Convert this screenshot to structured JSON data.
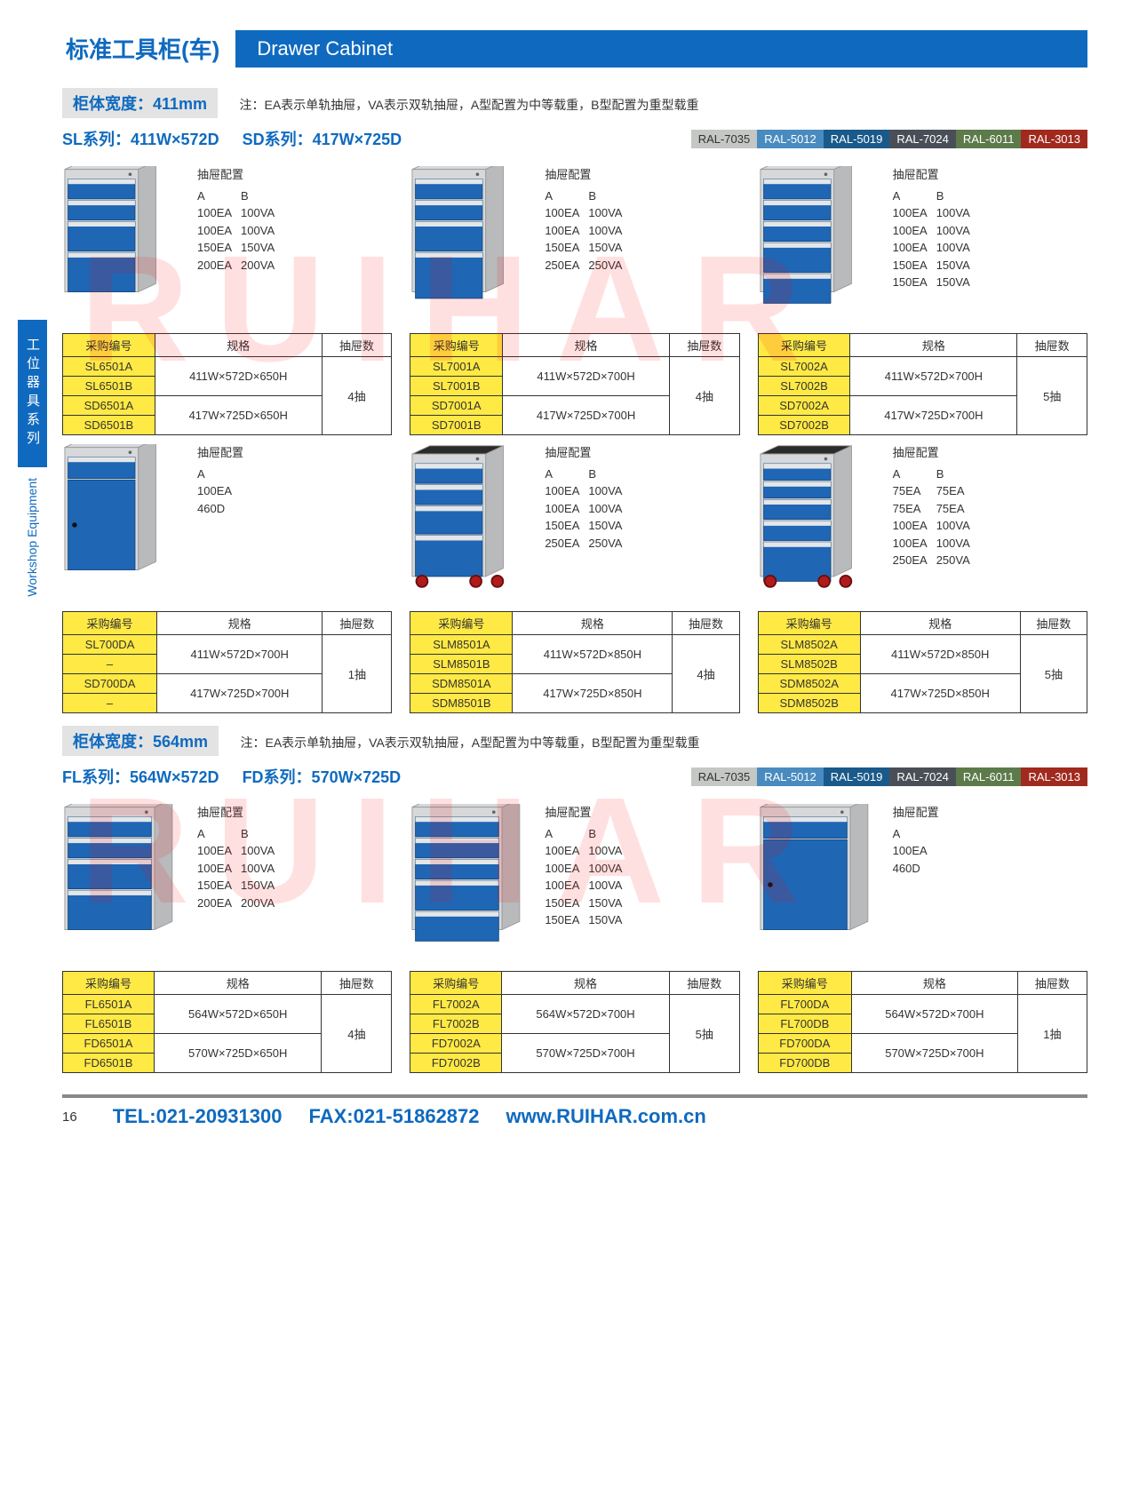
{
  "header": {
    "title_cn": "标准工具柜(车)",
    "title_en": "Drawer Cabinet"
  },
  "sidebar": {
    "cn": "工位器具系列",
    "en": "Workshop Equipment"
  },
  "watermark": "RUIHAR",
  "page_number": "16",
  "footer": {
    "tel": "TEL:021-20931300",
    "fax": "FAX:021-51862872",
    "web": "www.RUIHAR.com.cn"
  },
  "ral_colors": [
    {
      "label": "RAL-7035",
      "bg": "#c5c7c4",
      "text_color": "#333"
    },
    {
      "label": "RAL-5012",
      "bg": "#4a8bbf"
    },
    {
      "label": "RAL-5019",
      "bg": "#1a5a8a"
    },
    {
      "label": "RAL-7024",
      "bg": "#4a4f57"
    },
    {
      "label": "RAL-6011",
      "bg": "#5c7a4a"
    },
    {
      "label": "RAL-3013",
      "bg": "#a12a1f"
    }
  ],
  "note_text": "注：EA表示单轨抽屉，VA表示双轨抽屉，A型配置为中等载重，B型配置为重型载重",
  "config_title": "抽屉配置",
  "table_headers": {
    "code": "采购编号",
    "spec": "规格",
    "drawers": "抽屉数"
  },
  "sections": [
    {
      "width_label": "柜体宽度：411mm",
      "series": [
        {
          "label": "SL系列：411W×572D"
        },
        {
          "label": "SD系列：417W×725D"
        }
      ],
      "cards": [
        {
          "cabinet": {
            "drawers": [
              24,
              24,
              36,
              48
            ],
            "wheels": false,
            "door": false
          },
          "config_cols": [
            "A",
            "B"
          ],
          "config_rows": [
            [
              "100EA",
              "100VA"
            ],
            [
              "100EA",
              "100VA"
            ],
            [
              "150EA",
              "150VA"
            ],
            [
              "200EA",
              "200VA"
            ]
          ],
          "specs": [
            {
              "codes": [
                "SL6501A",
                "SL6501B"
              ],
              "spec": "411W×572D×650H",
              "drawers": "4抽",
              "dr_span": 4
            },
            {
              "codes": [
                "SD6501A",
                "SD6501B"
              ],
              "spec": "417W×725D×650H"
            }
          ]
        },
        {
          "cabinet": {
            "drawers": [
              24,
              24,
              36,
              56
            ],
            "wheels": false,
            "door": false
          },
          "config_cols": [
            "A",
            "B"
          ],
          "config_rows": [
            [
              "100EA",
              "100VA"
            ],
            [
              "100EA",
              "100VA"
            ],
            [
              "150EA",
              "150VA"
            ],
            [
              "250EA",
              "250VA"
            ]
          ],
          "specs": [
            {
              "codes": [
                "SL7001A",
                "SL7001B"
              ],
              "spec": "411W×572D×700H",
              "drawers": "4抽",
              "dr_span": 4
            },
            {
              "codes": [
                "SD7001A",
                "SD7001B"
              ],
              "spec": "417W×725D×700H"
            }
          ]
        },
        {
          "cabinet": {
            "drawers": [
              24,
              24,
              24,
              36,
              36
            ],
            "wheels": false,
            "door": false
          },
          "config_cols": [
            "A",
            "B"
          ],
          "config_rows": [
            [
              "100EA",
              "100VA"
            ],
            [
              "100EA",
              "100VA"
            ],
            [
              "100EA",
              "100VA"
            ],
            [
              "150EA",
              "150VA"
            ],
            [
              "150EA",
              "150VA"
            ]
          ],
          "specs": [
            {
              "codes": [
                "SL7002A",
                "SL7002B"
              ],
              "spec": "411W×572D×700H",
              "drawers": "5抽",
              "dr_span": 4
            },
            {
              "codes": [
                "SD7002A",
                "SD7002B"
              ],
              "spec": "417W×725D×700H"
            }
          ]
        },
        {
          "cabinet": {
            "drawers": [
              26
            ],
            "wheels": false,
            "door": true,
            "door_height": 110
          },
          "config_cols": [
            "A"
          ],
          "config_rows": [
            [
              "100EA"
            ],
            [
              "460D"
            ]
          ],
          "specs": [
            {
              "codes": [
                "SL700DA",
                "–"
              ],
              "spec": "411W×572D×700H",
              "drawers": "1抽",
              "dr_span": 4
            },
            {
              "codes": [
                "SD700DA",
                "–"
              ],
              "spec": "417W×725D×700H"
            }
          ]
        },
        {
          "cabinet": {
            "drawers": [
              24,
              24,
              34,
              50
            ],
            "wheels": true,
            "door": false,
            "top": true
          },
          "config_cols": [
            "A",
            "B"
          ],
          "config_rows": [
            [
              "100EA",
              "100VA"
            ],
            [
              "100EA",
              "100VA"
            ],
            [
              "150EA",
              "150VA"
            ],
            [
              "250EA",
              "250VA"
            ]
          ],
          "specs": [
            {
              "codes": [
                "SLM8501A",
                "SLM8501B"
              ],
              "spec": "411W×572D×850H",
              "drawers": "4抽",
              "dr_span": 4
            },
            {
              "codes": [
                "SDM8501A",
                "SDM8501B"
              ],
              "spec": "417W×725D×850H"
            }
          ]
        },
        {
          "cabinet": {
            "drawers": [
              20,
              20,
              24,
              24,
              48
            ],
            "wheels": true,
            "door": false,
            "top": true
          },
          "config_cols": [
            "A",
            "B"
          ],
          "config_rows": [
            [
              "75EA",
              "75EA"
            ],
            [
              "75EA",
              "75EA"
            ],
            [
              "100EA",
              "100VA"
            ],
            [
              "100EA",
              "100VA"
            ],
            [
              "250EA",
              "250VA"
            ]
          ],
          "specs": [
            {
              "codes": [
                "SLM8502A",
                "SLM8502B"
              ],
              "spec": "411W×572D×850H",
              "drawers": "5抽",
              "dr_span": 4
            },
            {
              "codes": [
                "SDM8502A",
                "SDM8502B"
              ],
              "spec": "417W×725D×850H"
            }
          ]
        }
      ]
    },
    {
      "width_label": "柜体宽度：564mm",
      "series": [
        {
          "label": "FL系列：564W×572D"
        },
        {
          "label": "FD系列：570W×725D"
        }
      ],
      "cards": [
        {
          "cabinet": {
            "drawers": [
              24,
              24,
              36,
              48
            ],
            "wheels": false,
            "door": false,
            "wide": true
          },
          "config_cols": [
            "A",
            "B"
          ],
          "config_rows": [
            [
              "100EA",
              "100VA"
            ],
            [
              "100EA",
              "100VA"
            ],
            [
              "150EA",
              "150VA"
            ],
            [
              "200EA",
              "200VA"
            ]
          ],
          "specs": [
            {
              "codes": [
                "FL6501A",
                "FL6501B"
              ],
              "spec": "564W×572D×650H",
              "drawers": "4抽",
              "dr_span": 4
            },
            {
              "codes": [
                "FD6501A",
                "FD6501B"
              ],
              "spec": "570W×725D×650H"
            }
          ]
        },
        {
          "cabinet": {
            "drawers": [
              24,
              24,
              24,
              36,
              36
            ],
            "wheels": false,
            "door": false,
            "wide": true
          },
          "config_cols": [
            "A",
            "B"
          ],
          "config_rows": [
            [
              "100EA",
              "100VA"
            ],
            [
              "100EA",
              "100VA"
            ],
            [
              "100EA",
              "100VA"
            ],
            [
              "150EA",
              "150VA"
            ],
            [
              "150EA",
              "150VA"
            ]
          ],
          "specs": [
            {
              "codes": [
                "FL7002A",
                "FL7002B"
              ],
              "spec": "564W×572D×700H",
              "drawers": "5抽",
              "dr_span": 4
            },
            {
              "codes": [
                "FD7002A",
                "FD7002B"
              ],
              "spec": "570W×725D×700H"
            }
          ]
        },
        {
          "cabinet": {
            "drawers": [
              26
            ],
            "wheels": false,
            "door": true,
            "door_height": 110,
            "wide": true
          },
          "config_cols": [
            "A"
          ],
          "config_rows": [
            [
              "100EA"
            ],
            [
              "460D"
            ]
          ],
          "specs": [
            {
              "codes": [
                "FL700DA",
                "FL700DB"
              ],
              "spec": "564W×572D×700H",
              "drawers": "1抽",
              "dr_span": 4
            },
            {
              "codes": [
                "FD700DA",
                "FD700DB"
              ],
              "spec": "570W×725D×700H"
            }
          ]
        }
      ]
    }
  ],
  "colors": {
    "cabinet_body": "#d6d8da",
    "cabinet_body_dark": "#b8babc",
    "drawer_blue": "#1f66b5",
    "drawer_blue_dark": "#154a82",
    "handle": "#e4e6e8",
    "wheel": "#b01b1b",
    "wheel_dark": "#6a0f0f"
  }
}
